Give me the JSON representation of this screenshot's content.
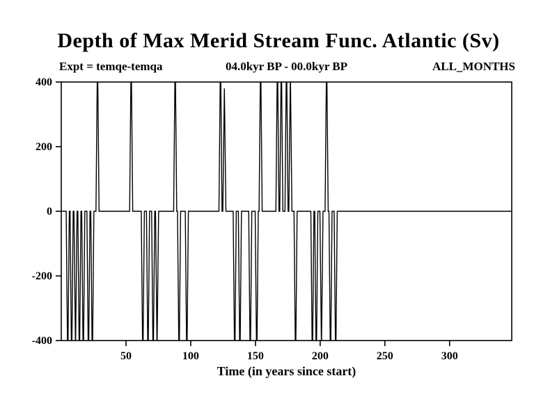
{
  "title": "Depth of Max Merid Stream Func. Atlantic (Sv)",
  "header": {
    "expt": "Expt = temqe-temqa",
    "period": "04.0kyr BP - 00.0kyr BP",
    "months": "ALL_MONTHS"
  },
  "chart_data": {
    "type": "line",
    "title": "Depth of Max Merid Stream Func. Atlantic (Sv)",
    "subtitle_left": "Expt = temqe-temqa",
    "subtitle_center": "04.0kyr BP - 00.0kyr BP",
    "subtitle_right": "ALL_MONTHS",
    "xlabel": "Time (in years since start)",
    "ylabel": "",
    "xlim": [
      0,
      348
    ],
    "ylim": [
      -400,
      400
    ],
    "xticks": [
      50,
      100,
      150,
      200,
      250,
      300
    ],
    "yticks": [
      -400,
      -200,
      0,
      200,
      400
    ],
    "grid": false,
    "legend": "none",
    "line_color": "#000000",
    "baseline": 0,
    "clip_value": 400,
    "spike_halfwidth": 1.2,
    "note": "Series sits at 0 Sv with narrow spikes; values of +/-500 represent spikes clipped at the +/-400 axis limits; flat at 0 after year ~215.",
    "spikes": [
      {
        "x": 5,
        "v": -500
      },
      {
        "x": 8,
        "v": -500
      },
      {
        "x": 11,
        "v": -430
      },
      {
        "x": 14,
        "v": -500
      },
      {
        "x": 17,
        "v": -500
      },
      {
        "x": 21,
        "v": -500
      },
      {
        "x": 24,
        "v": -500
      },
      {
        "x": 28,
        "v": 500
      },
      {
        "x": 54,
        "v": 500
      },
      {
        "x": 63,
        "v": -500
      },
      {
        "x": 67,
        "v": -500
      },
      {
        "x": 71,
        "v": -500
      },
      {
        "x": 74,
        "v": -430
      },
      {
        "x": 88,
        "v": 500
      },
      {
        "x": 91,
        "v": -500
      },
      {
        "x": 97,
        "v": -500
      },
      {
        "x": 123,
        "v": 500
      },
      {
        "x": 126,
        "v": 380
      },
      {
        "x": 134,
        "v": -500
      },
      {
        "x": 138,
        "v": -500
      },
      {
        "x": 146,
        "v": -500
      },
      {
        "x": 151,
        "v": -500
      },
      {
        "x": 154,
        "v": 500
      },
      {
        "x": 167,
        "v": 500
      },
      {
        "x": 170,
        "v": 500
      },
      {
        "x": 174,
        "v": 500
      },
      {
        "x": 177,
        "v": 430
      },
      {
        "x": 181,
        "v": -500
      },
      {
        "x": 194,
        "v": -500
      },
      {
        "x": 197,
        "v": -500
      },
      {
        "x": 201,
        "v": -430
      },
      {
        "x": 205,
        "v": 500
      },
      {
        "x": 208,
        "v": -500
      },
      {
        "x": 212,
        "v": -500
      }
    ]
  }
}
